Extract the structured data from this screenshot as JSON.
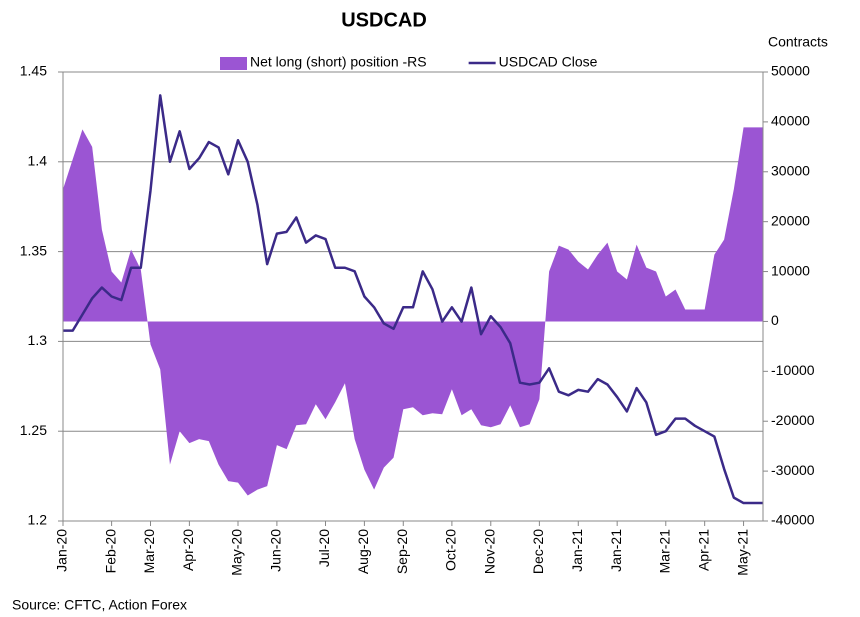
{
  "chart_data": {
    "type": "line",
    "title": "USDCAD",
    "y2_label": "Contracts",
    "source": "Source: CFTC, Action Forex",
    "grid": true,
    "categories": [
      "Jan-20",
      null,
      null,
      null,
      null,
      "Feb-20",
      null,
      null,
      null,
      "Mar-20",
      null,
      null,
      null,
      "Apr-20",
      null,
      null,
      null,
      null,
      "May-20",
      null,
      null,
      null,
      "Jun-20",
      null,
      null,
      null,
      null,
      "Jul-20",
      null,
      null,
      null,
      "Aug-20",
      null,
      null,
      null,
      "Sep-20",
      null,
      null,
      null,
      null,
      "Oct-20",
      null,
      null,
      null,
      "Nov-20",
      null,
      null,
      null,
      null,
      "Dec-20",
      null,
      null,
      null,
      "Jan-21",
      null,
      null,
      null,
      "Jan-21",
      null,
      null,
      null,
      null,
      "Mar-21",
      null,
      null,
      null,
      "Apr-21",
      null,
      null,
      null,
      "May-21",
      null,
      null
    ],
    "ylim": [
      1.2,
      1.45
    ],
    "yticks": [
      1.2,
      1.25,
      1.3,
      1.35,
      1.4,
      1.45
    ],
    "y2lim": [
      -40000,
      50000
    ],
    "y2ticks": [
      -40000,
      -30000,
      -20000,
      -10000,
      0,
      10000,
      20000,
      30000,
      40000,
      50000
    ],
    "series": [
      {
        "name": "Net long (short) position -RS",
        "type": "area",
        "axis": "y2",
        "color": "#9b55d3",
        "values": [
          26500,
          32500,
          38500,
          35000,
          18400,
          10000,
          7800,
          14400,
          10400,
          -4600,
          -9600,
          -28700,
          -22000,
          -24400,
          -23600,
          -24000,
          -28700,
          -32000,
          -32300,
          -34900,
          -33700,
          -33000,
          -24800,
          -25600,
          -20800,
          -20600,
          -16600,
          -19600,
          -16200,
          -12400,
          -23600,
          -29700,
          -33700,
          -29300,
          -27300,
          -17600,
          -17200,
          -18800,
          -18400,
          -18600,
          -13600,
          -18800,
          -17600,
          -20800,
          -21200,
          -20600,
          -16800,
          -21200,
          -20600,
          -15600,
          10000,
          15200,
          14400,
          12000,
          10400,
          13400,
          15800,
          10000,
          8400,
          15400,
          10800,
          10000,
          5000,
          6400,
          2400,
          2400,
          2400,
          13400,
          16400,
          26500,
          38900,
          38900,
          38900
        ]
      },
      {
        "name": "USDCAD Close",
        "type": "line",
        "color": "#3b2a88",
        "values": [
          1.306,
          1.306,
          1.315,
          1.324,
          1.33,
          1.325,
          1.323,
          1.341,
          1.341,
          1.384,
          1.437,
          1.4,
          1.417,
          1.396,
          1.402,
          1.411,
          1.408,
          1.393,
          1.412,
          1.4,
          1.376,
          1.343,
          1.36,
          1.361,
          1.369,
          1.355,
          1.359,
          1.357,
          1.341,
          1.341,
          1.339,
          1.325,
          1.319,
          1.31,
          1.307,
          1.319,
          1.319,
          1.339,
          1.329,
          1.311,
          1.319,
          1.311,
          1.33,
          1.304,
          1.314,
          1.308,
          1.299,
          1.277,
          1.276,
          1.277,
          1.285,
          1.272,
          1.27,
          1.273,
          1.272,
          1.279,
          1.276,
          1.269,
          1.261,
          1.274,
          1.266,
          1.248,
          1.25,
          1.257,
          1.257,
          1.253,
          1.25,
          1.247,
          1.229,
          1.213,
          1.21,
          1.21,
          1.21
        ]
      }
    ]
  }
}
